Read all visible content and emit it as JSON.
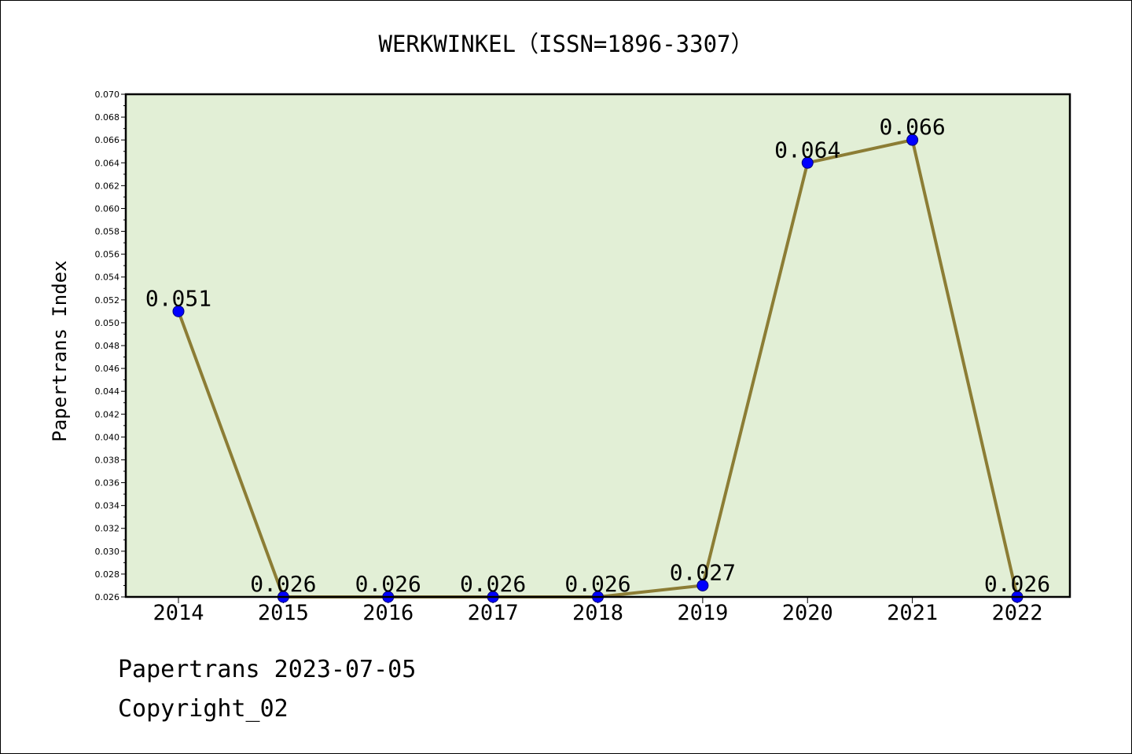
{
  "chart_data": {
    "type": "line",
    "title": "WERKWINKEL（ISSN=1896-3307）",
    "xlabel": "",
    "ylabel": "Papertrans Index",
    "categories": [
      "2014",
      "2015",
      "2016",
      "2017",
      "2018",
      "2019",
      "2020",
      "2021",
      "2022"
    ],
    "series": [
      {
        "values": [
          0.051,
          0.026,
          0.026,
          0.026,
          0.026,
          0.027,
          0.064,
          0.066,
          0.026
        ],
        "labels": [
          "0.051",
          "0.026",
          "0.026",
          "0.026",
          "0.026",
          "0.027",
          "0.064",
          "0.066",
          "0.026"
        ]
      }
    ],
    "ylim": [
      0.026,
      0.07
    ],
    "yticks": [
      "0.026",
      "0.028",
      "0.030",
      "0.032",
      "0.034",
      "0.036",
      "0.038",
      "0.040",
      "0.042",
      "0.044",
      "0.046",
      "0.048",
      "0.050",
      "0.052",
      "0.054",
      "0.056",
      "0.058",
      "0.060",
      "0.062",
      "0.064",
      "0.066",
      "0.068",
      "0.070"
    ],
    "grid": false,
    "colors": {
      "plot_background": "#e2efd6",
      "line": "#8c7d35",
      "marker": "#0000ff"
    }
  },
  "footer": {
    "line1": "Papertrans 2023-07-05",
    "line2": "Copyright_02"
  }
}
